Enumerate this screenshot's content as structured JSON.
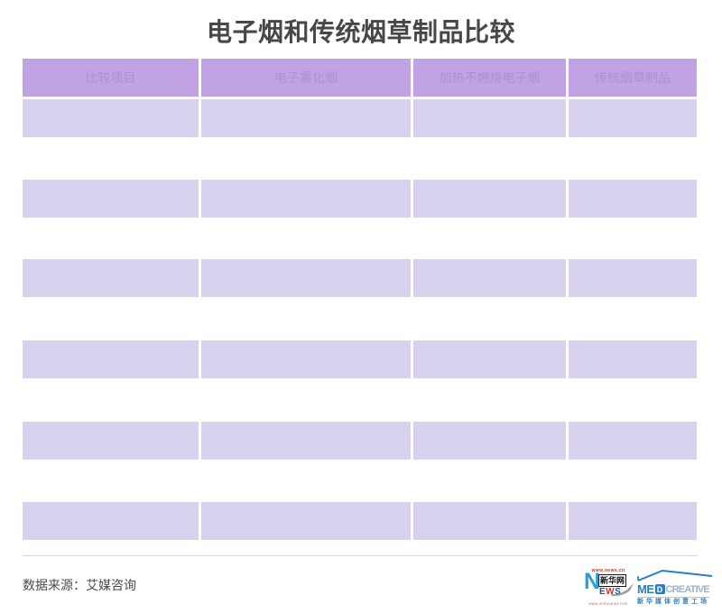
{
  "chart_data": {
    "type": "table",
    "title": "电子烟和传统烟草制品比较",
    "columns": [
      "比较项目",
      "电子雾化烟",
      "加热不燃烧电子烟",
      "传统烟草制品"
    ],
    "rows": [
      [
        "",
        "",
        "",
        ""
      ],
      [
        "",
        "",
        "",
        ""
      ],
      [
        "",
        "",
        "",
        ""
      ],
      [
        "",
        "",
        "",
        ""
      ],
      [
        "",
        "",
        "",
        ""
      ],
      [
        "",
        "",
        "",
        ""
      ]
    ],
    "source": "数据来源：艾媒咨询",
    "layout": {
      "header_bg": "#c1a2e3",
      "header_text": "#ab91d2",
      "row_bg": "#d9d2ee",
      "grid": "off",
      "note": "body cells rendered empty in screenshot"
    }
  },
  "logos": {
    "xinhuanet": {
      "top_url": "www.news.cn",
      "initial": "N",
      "cn_name": "新华网",
      "news_e": "E",
      "news_w": "W",
      "news_s": "S",
      "bottom_url": "www.xinhuanet.com"
    },
    "medcreative": {
      "brand_me": "ME",
      "brand_d": "D",
      "brand_creative": "CREATIVE",
      "cn_name": "新华媒体创意工场"
    }
  },
  "colors": {
    "title_text": "#474747",
    "xinhua_blue": "#27a0d6",
    "news_blue": "#15599c",
    "logo_red": "#cf3430",
    "med_blue": "#2e7cc0",
    "med_gray_blue": "#9db2cb"
  }
}
